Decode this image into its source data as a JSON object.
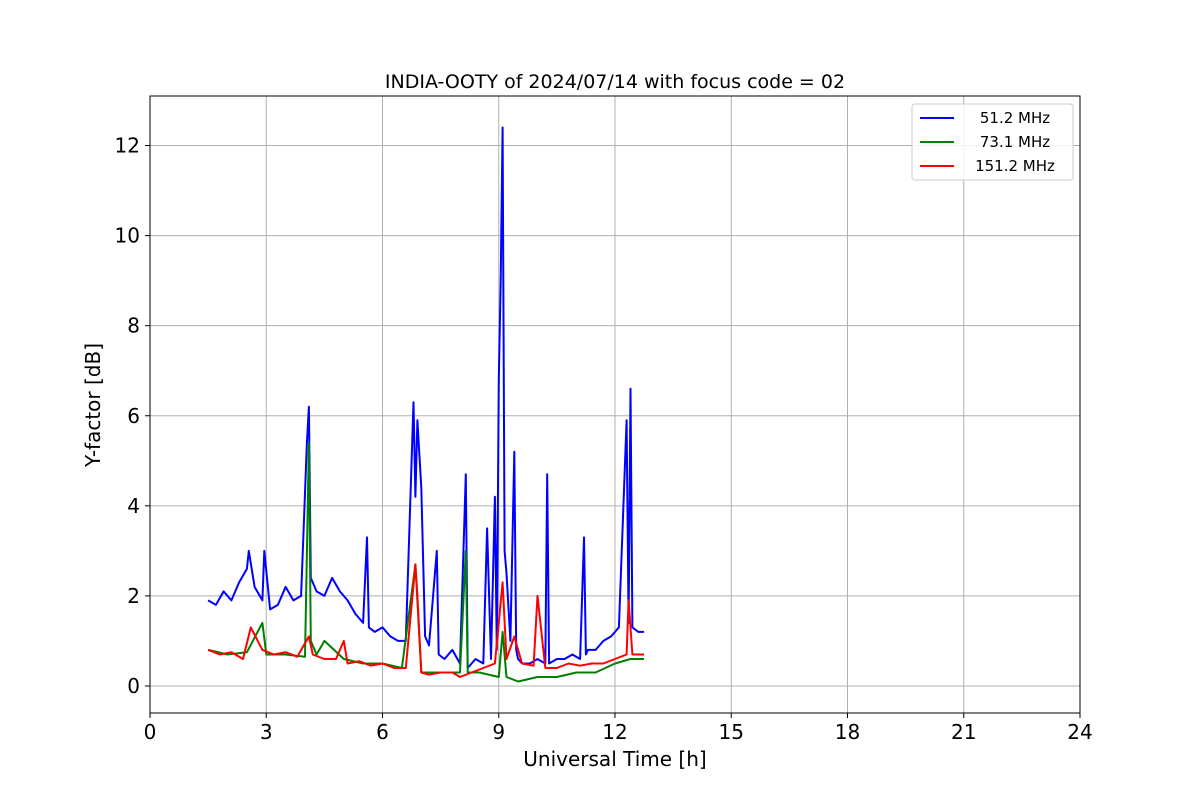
{
  "chart_data": {
    "type": "line",
    "title": "INDIA-OOTY of 2024/07/14 with focus code = 02",
    "xlabel": "Universal Time [h]",
    "ylabel": "Y-factor [dB]",
    "xlim": [
      0,
      24
    ],
    "ylim": [
      -0.6,
      13.1
    ],
    "xticks": [
      0,
      3,
      6,
      9,
      12,
      15,
      18,
      21,
      24
    ],
    "yticks": [
      0,
      2,
      4,
      6,
      8,
      10,
      12
    ],
    "grid": true,
    "legend_position": "top-right",
    "series": [
      {
        "name": "51.2 MHz",
        "color": "#0000ff",
        "x": [
          1.5,
          1.7,
          1.9,
          2.1,
          2.3,
          2.5,
          2.55,
          2.7,
          2.9,
          2.95,
          3.1,
          3.3,
          3.5,
          3.7,
          3.9,
          4.05,
          4.1,
          4.15,
          4.3,
          4.5,
          4.7,
          4.9,
          5.1,
          5.3,
          5.5,
          5.6,
          5.65,
          5.8,
          6.0,
          6.2,
          6.4,
          6.6,
          6.8,
          6.85,
          6.9,
          7.0,
          7.1,
          7.2,
          7.4,
          7.45,
          7.6,
          7.8,
          8.0,
          8.15,
          8.2,
          8.4,
          8.6,
          8.7,
          8.8,
          8.9,
          8.95,
          9.0,
          9.05,
          9.1,
          9.15,
          9.2,
          9.3,
          9.4,
          9.45,
          9.5,
          9.6,
          9.8,
          10.0,
          10.2,
          10.25,
          10.3,
          10.5,
          10.7,
          10.9,
          11.1,
          11.2,
          11.25,
          11.3,
          11.5,
          11.7,
          11.9,
          12.1,
          12.3,
          12.35,
          12.4,
          12.45,
          12.6,
          12.75
        ],
        "y": [
          1.9,
          1.8,
          2.1,
          1.9,
          2.3,
          2.6,
          3.0,
          2.2,
          1.9,
          3.0,
          1.7,
          1.8,
          2.2,
          1.9,
          2.0,
          5.4,
          6.2,
          2.4,
          2.1,
          2.0,
          2.4,
          2.1,
          1.9,
          1.6,
          1.4,
          3.3,
          1.3,
          1.2,
          1.3,
          1.1,
          1.0,
          1.0,
          6.3,
          4.2,
          5.9,
          4.4,
          1.1,
          0.9,
          3.0,
          0.7,
          0.6,
          0.8,
          0.5,
          4.7,
          0.4,
          0.6,
          0.5,
          3.5,
          0.6,
          4.2,
          0.8,
          6.8,
          9.0,
          12.4,
          3.0,
          2.5,
          1.0,
          5.2,
          0.8,
          0.6,
          0.5,
          0.5,
          0.6,
          0.5,
          4.7,
          0.5,
          0.6,
          0.6,
          0.7,
          0.6,
          3.3,
          0.7,
          0.8,
          0.8,
          1.0,
          1.1,
          1.3,
          5.9,
          1.4,
          6.6,
          1.3,
          1.2,
          1.2
        ]
      },
      {
        "name": "73.1 MHz",
        "color": "#008000",
        "x": [
          1.5,
          2.0,
          2.5,
          2.9,
          3.0,
          3.5,
          4.0,
          4.1,
          4.15,
          4.3,
          4.5,
          5.0,
          5.5,
          6.0,
          6.5,
          6.85,
          7.0,
          7.5,
          8.0,
          8.15,
          8.2,
          8.5,
          9.0,
          9.1,
          9.2,
          9.5,
          10.0,
          10.5,
          11.0,
          11.5,
          12.0,
          12.4,
          12.75
        ],
        "y": [
          0.8,
          0.7,
          0.75,
          1.4,
          0.7,
          0.7,
          0.65,
          5.4,
          1.0,
          0.7,
          1.0,
          0.6,
          0.5,
          0.5,
          0.4,
          2.7,
          0.3,
          0.3,
          0.3,
          3.0,
          0.3,
          0.3,
          0.2,
          1.2,
          0.2,
          0.1,
          0.2,
          0.2,
          0.3,
          0.3,
          0.5,
          0.6,
          0.6
        ]
      },
      {
        "name": "151.2 MHz",
        "color": "#ff0000",
        "x": [
          1.5,
          1.8,
          2.1,
          2.4,
          2.6,
          2.9,
          3.2,
          3.5,
          3.8,
          4.1,
          4.2,
          4.5,
          4.8,
          5.0,
          5.1,
          5.4,
          5.7,
          6.0,
          6.3,
          6.6,
          6.85,
          6.9,
          7.0,
          7.2,
          7.5,
          7.8,
          8.0,
          8.3,
          8.6,
          8.9,
          9.1,
          9.2,
          9.4,
          9.6,
          9.9,
          10.0,
          10.2,
          10.5,
          10.8,
          11.1,
          11.4,
          11.7,
          12.0,
          12.3,
          12.35,
          12.45,
          12.75
        ],
        "y": [
          0.8,
          0.7,
          0.75,
          0.6,
          1.3,
          0.8,
          0.7,
          0.75,
          0.65,
          1.1,
          0.7,
          0.6,
          0.6,
          1.0,
          0.5,
          0.55,
          0.45,
          0.5,
          0.4,
          0.4,
          2.7,
          2.0,
          0.3,
          0.25,
          0.3,
          0.3,
          0.2,
          0.3,
          0.4,
          0.5,
          2.3,
          0.6,
          1.1,
          0.5,
          0.45,
          2.0,
          0.4,
          0.4,
          0.5,
          0.45,
          0.5,
          0.5,
          0.6,
          0.7,
          1.9,
          0.7,
          0.7
        ]
      }
    ]
  }
}
